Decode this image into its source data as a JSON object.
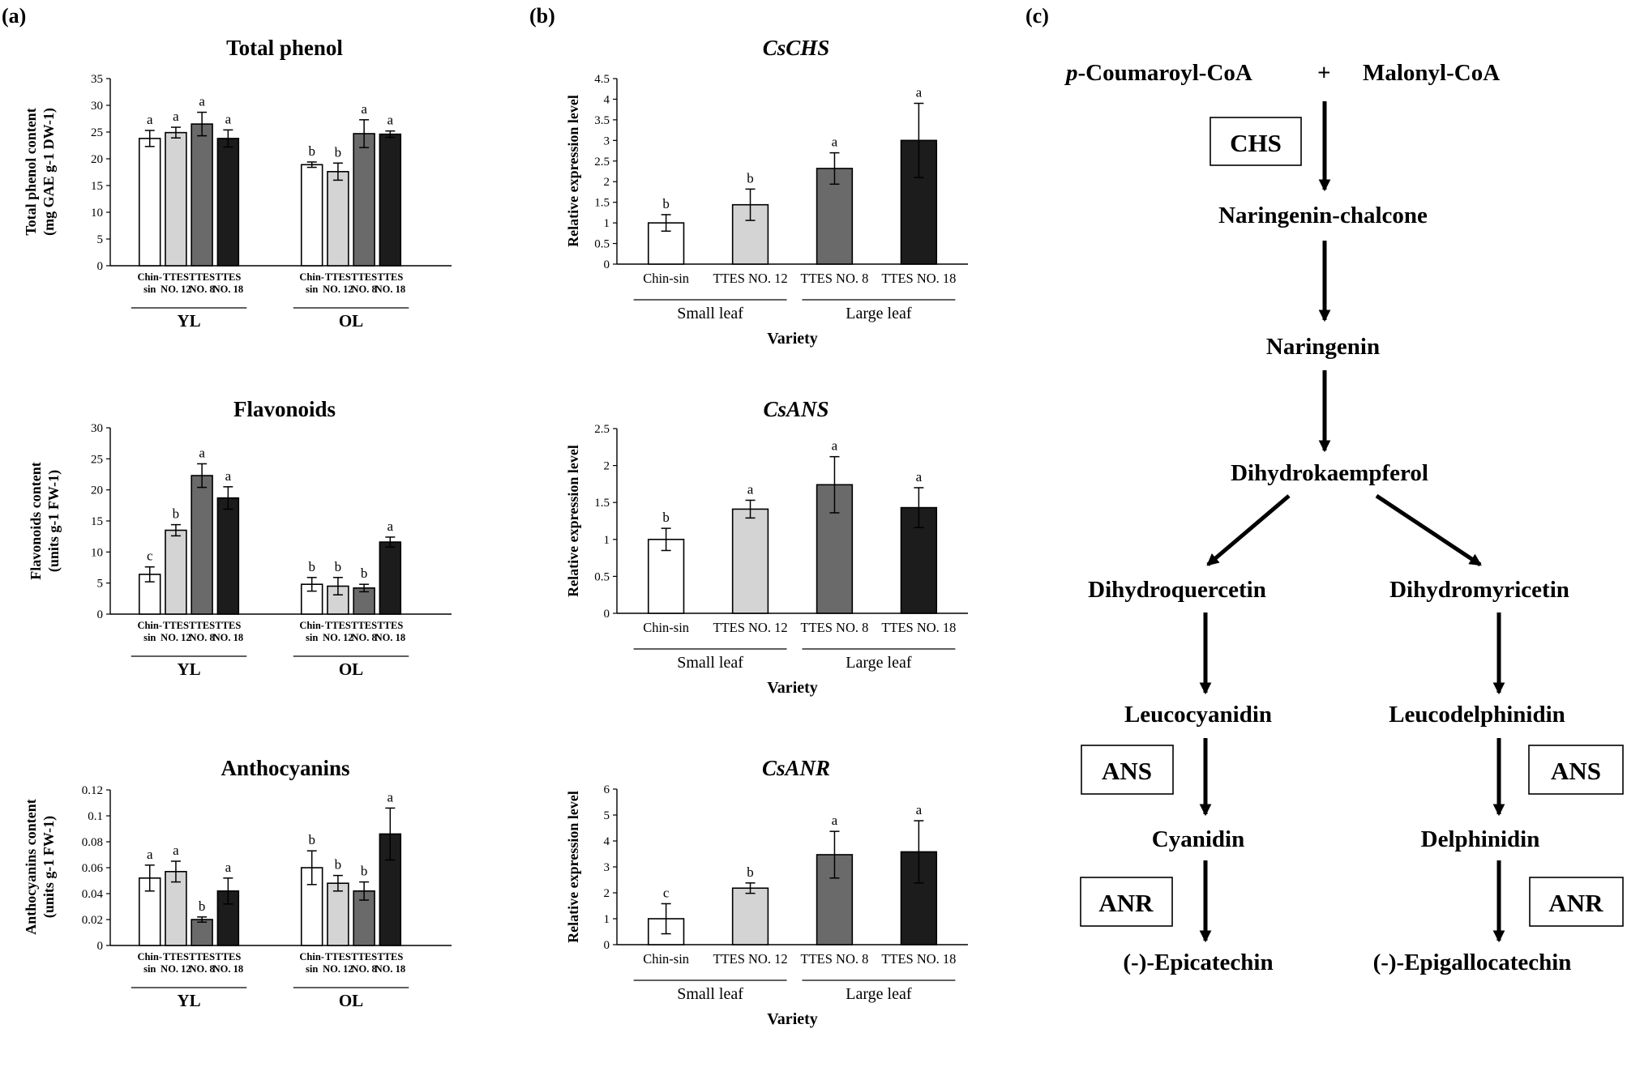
{
  "panels": {
    "a": "(a)",
    "b": "(b)",
    "c": "(c)"
  },
  "colors": {
    "Chin-sin": "#ffffff",
    "TTES NO. 12": "#d4d4d4",
    "TTES NO. 8": "#6a6a6a",
    "TTES NO. 18": "#1c1c1c",
    "axis": "#000000"
  },
  "chart_data": [
    {
      "id": "total_phenol",
      "type": "bar",
      "title": "Total phenol",
      "ylabel": [
        "Total phenol content",
        "(mg GAE g-1 DW-1)"
      ],
      "ylim": [
        0,
        35
      ],
      "yticks": [
        0,
        5,
        10,
        15,
        20,
        25,
        30,
        35
      ],
      "category_labels": [
        [
          "Chin-",
          "sin"
        ],
        [
          "TTES",
          "NO. 12"
        ],
        [
          "TTES",
          "NO. 8"
        ],
        [
          "TTES",
          "NO. 18"
        ]
      ],
      "groups": [
        {
          "name": "YL",
          "bars": [
            {
              "variety": "Chin-sin",
              "value": 23.8,
              "error": 1.5,
              "letter": "a"
            },
            {
              "variety": "TTES NO. 12",
              "value": 24.9,
              "error": 1.0,
              "letter": "a"
            },
            {
              "variety": "TTES NO. 8",
              "value": 26.5,
              "error": 2.2,
              "letter": "a"
            },
            {
              "variety": "TTES NO. 18",
              "value": 23.8,
              "error": 1.6,
              "letter": "a"
            }
          ]
        },
        {
          "name": "OL",
          "bars": [
            {
              "variety": "Chin-sin",
              "value": 18.9,
              "error": 0.5,
              "letter": "b"
            },
            {
              "variety": "TTES NO. 12",
              "value": 17.6,
              "error": 1.6,
              "letter": "b"
            },
            {
              "variety": "TTES NO. 8",
              "value": 24.7,
              "error": 2.6,
              "letter": "a"
            },
            {
              "variety": "TTES NO. 18",
              "value": 24.6,
              "error": 0.6,
              "letter": "a"
            }
          ]
        }
      ]
    },
    {
      "id": "flavonoids",
      "type": "bar",
      "title": "Flavonoids",
      "ylabel": [
        "Flavonoids content",
        "(units g-1 FW-1)"
      ],
      "ylim": [
        0,
        30
      ],
      "yticks": [
        0,
        5,
        10,
        15,
        20,
        25,
        30
      ],
      "category_labels": [
        [
          "Chin-",
          "sin"
        ],
        [
          "TTES",
          "NO. 12"
        ],
        [
          "TTES",
          "NO. 8"
        ],
        [
          "TTES",
          "NO. 18"
        ]
      ],
      "groups": [
        {
          "name": "YL",
          "bars": [
            {
              "variety": "Chin-sin",
              "value": 6.4,
              "error": 1.2,
              "letter": "c"
            },
            {
              "variety": "TTES NO. 12",
              "value": 13.5,
              "error": 0.9,
              "letter": "b"
            },
            {
              "variety": "TTES NO. 8",
              "value": 22.3,
              "error": 1.9,
              "letter": "a"
            },
            {
              "variety": "TTES NO. 18",
              "value": 18.7,
              "error": 1.8,
              "letter": "a"
            }
          ]
        },
        {
          "name": "OL",
          "bars": [
            {
              "variety": "Chin-sin",
              "value": 4.8,
              "error": 1.1,
              "letter": "b"
            },
            {
              "variety": "TTES NO. 12",
              "value": 4.5,
              "error": 1.4,
              "letter": "b"
            },
            {
              "variety": "TTES NO. 8",
              "value": 4.2,
              "error": 0.6,
              "letter": "b"
            },
            {
              "variety": "TTES NO. 18",
              "value": 11.6,
              "error": 0.8,
              "letter": "a"
            }
          ]
        }
      ]
    },
    {
      "id": "anthocyanins",
      "type": "bar",
      "title": "Anthocyanins",
      "ylabel": [
        "Anthocyanins content",
        "(units g-1 FW-1)"
      ],
      "ylim": [
        0,
        0.12
      ],
      "yticks": [
        0,
        0.02,
        0.04,
        0.06,
        0.08,
        0.1,
        0.12
      ],
      "category_labels": [
        [
          "Chin-",
          "sin"
        ],
        [
          "TTES",
          "NO. 12"
        ],
        [
          "TTES",
          "NO. 8"
        ],
        [
          "TTES",
          "NO. 18"
        ]
      ],
      "groups": [
        {
          "name": "YL",
          "bars": [
            {
              "variety": "Chin-sin",
              "value": 0.052,
              "error": 0.01,
              "letter": "a"
            },
            {
              "variety": "TTES NO. 12",
              "value": 0.057,
              "error": 0.008,
              "letter": "a"
            },
            {
              "variety": "TTES NO. 8",
              "value": 0.02,
              "error": 0.002,
              "letter": "b"
            },
            {
              "variety": "TTES NO. 18",
              "value": 0.042,
              "error": 0.01,
              "letter": "a"
            }
          ]
        },
        {
          "name": "OL",
          "bars": [
            {
              "variety": "Chin-sin",
              "value": 0.06,
              "error": 0.013,
              "letter": "b"
            },
            {
              "variety": "TTES NO. 12",
              "value": 0.048,
              "error": 0.006,
              "letter": "b"
            },
            {
              "variety": "TTES NO. 8",
              "value": 0.042,
              "error": 0.007,
              "letter": "b"
            },
            {
              "variety": "TTES NO. 18",
              "value": 0.086,
              "error": 0.02,
              "letter": "a"
            }
          ]
        }
      ]
    },
    {
      "id": "cschs",
      "type": "bar",
      "title": "CsCHS",
      "ylabel": [
        "Relative expression level"
      ],
      "xlabel": "Variety",
      "ylim": [
        0,
        4.5
      ],
      "yticks": [
        0,
        0.5,
        1,
        1.5,
        2,
        2.5,
        3,
        3.5,
        4,
        4.5
      ],
      "categories": [
        "Chin-sin",
        "TTES NO. 12",
        "TTES NO. 8",
        "TTES NO. 18"
      ],
      "values": [
        1.0,
        1.44,
        2.32,
        3.0
      ],
      "errors": [
        0.2,
        0.38,
        0.38,
        0.9
      ],
      "letters": [
        "b",
        "b",
        "a",
        "a"
      ],
      "groups": [
        {
          "name": "Small leaf",
          "span": [
            0,
            1
          ]
        },
        {
          "name": "Large leaf",
          "span": [
            2,
            3
          ]
        }
      ]
    },
    {
      "id": "csans",
      "type": "bar",
      "title": "CsANS",
      "ylabel": [
        "Relative expression level"
      ],
      "xlabel": "Variety",
      "ylim": [
        0,
        2.5
      ],
      "yticks": [
        0,
        0.5,
        1,
        1.5,
        2,
        2.5
      ],
      "categories": [
        "Chin-sin",
        "TTES NO. 12",
        "TTES NO. 8",
        "TTES NO. 18"
      ],
      "values": [
        1.0,
        1.41,
        1.74,
        1.43
      ],
      "errors": [
        0.15,
        0.12,
        0.38,
        0.27
      ],
      "letters": [
        "b",
        "a",
        "a",
        "a"
      ],
      "groups": [
        {
          "name": "Small leaf",
          "span": [
            0,
            1
          ]
        },
        {
          "name": "Large leaf",
          "span": [
            2,
            3
          ]
        }
      ]
    },
    {
      "id": "csanr",
      "type": "bar",
      "title": "CsANR",
      "ylabel": [
        "Relative expression level"
      ],
      "xlabel": "Variety",
      "ylim": [
        0,
        6
      ],
      "yticks": [
        0,
        1,
        2,
        3,
        4,
        5,
        6
      ],
      "categories": [
        "Chin-sin",
        "TTES NO. 12",
        "TTES NO. 8",
        "TTES NO. 18"
      ],
      "values": [
        1.0,
        2.18,
        3.47,
        3.58
      ],
      "errors": [
        0.58,
        0.2,
        0.9,
        1.2
      ],
      "letters": [
        "c",
        "b",
        "a",
        "a"
      ],
      "groups": [
        {
          "name": "Small leaf",
          "span": [
            0,
            1
          ]
        },
        {
          "name": "Large leaf",
          "span": [
            2,
            3
          ]
        }
      ]
    }
  ],
  "pathway": {
    "prefix_italic": "p",
    "coumaroyl_rest": "-Coumaroyl-CoA",
    "plus": "+",
    "malonyl": "Malonyl-CoA",
    "naringenin_chalcone": "Naringenin-chalcone",
    "naringenin": "Naringenin",
    "dihydrokaempferol": "Dihydrokaempferol",
    "dihydroquercetin": "Dihydroquercetin",
    "dihydromyricetin": "Dihydromyricetin",
    "leucocyanidin": "Leucocyanidin",
    "leucodelphinidin": "Leucodelphinidin",
    "cyanidin": "Cyanidin",
    "delphinidin": "Delphinidin",
    "epicatechin": "(-)-Epicatechin",
    "epigallocatechin": "(-)-Epigallocatechin",
    "enzymes": {
      "chs": "CHS",
      "ans": "ANS",
      "anr": "ANR"
    }
  }
}
